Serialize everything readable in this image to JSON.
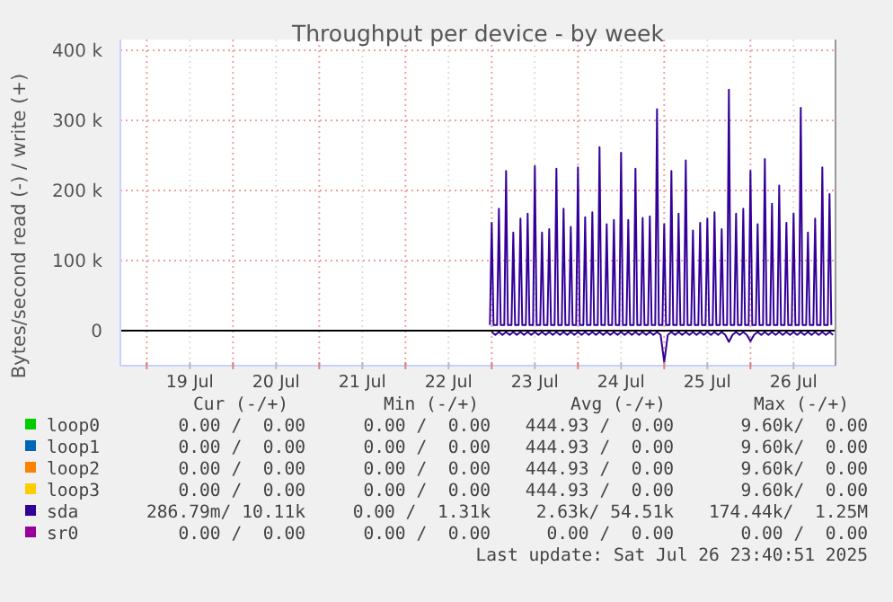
{
  "chart_data": {
    "type": "line",
    "title": "Throughput per device - by week",
    "ylabel": "Bytes/second read (-) / write (+)",
    "xlim": [
      "2025-07-18T16:40",
      "2025-07-26T23:40"
    ],
    "xticks": [
      {
        "value": "2025-07-19T00:00",
        "label": null
      },
      {
        "value": "2025-07-19T12:00",
        "label": "19 Jul"
      },
      {
        "value": "2025-07-20T00:00",
        "label": null
      },
      {
        "value": "2025-07-20T12:00",
        "label": "20 Jul"
      },
      {
        "value": "2025-07-21T00:00",
        "label": null
      },
      {
        "value": "2025-07-21T12:00",
        "label": "21 Jul"
      },
      {
        "value": "2025-07-22T00:00",
        "label": null
      },
      {
        "value": "2025-07-22T12:00",
        "label": "22 Jul"
      },
      {
        "value": "2025-07-23T00:00",
        "label": null
      },
      {
        "value": "2025-07-23T12:00",
        "label": "23 Jul"
      },
      {
        "value": "2025-07-24T00:00",
        "label": null
      },
      {
        "value": "2025-07-24T12:00",
        "label": "24 Jul"
      },
      {
        "value": "2025-07-25T00:00",
        "label": null
      },
      {
        "value": "2025-07-25T12:00",
        "label": "25 Jul"
      },
      {
        "value": "2025-07-26T00:00",
        "label": null
      },
      {
        "value": "2025-07-26T12:00",
        "label": "26 Jul"
      }
    ],
    "ylim": [
      -50000,
      400000
    ],
    "yticks": [
      0,
      {
        "value": 100000,
        "label": "100 k"
      },
      {
        "value": 200000,
        "label": "200 k"
      },
      {
        "value": 300000,
        "label": "300 k"
      },
      {
        "value": 400000,
        "label": "400 k"
      }
    ],
    "grid": true,
    "legend": "bottom",
    "marker": "none",
    "line_style": "solid",
    "series": [
      {
        "name": "loop0",
        "color": "#00cc00"
      },
      {
        "name": "loop1",
        "color": "#0066b3"
      },
      {
        "name": "loop2",
        "color": "#ff8000"
      },
      {
        "name": "loop3",
        "color": "#ffcc00"
      },
      {
        "name": "sda",
        "color": "#330099",
        "x": [
          "2025-07-22T23:30",
          "2025-07-23T00:00",
          "2025-07-23T00:30",
          "2025-07-23T01:30",
          "2025-07-23T02:00",
          "2025-07-23T02:30",
          "2025-07-23T03:30",
          "2025-07-23T04:00",
          "2025-07-23T04:30",
          "2025-07-23T05:30",
          "2025-07-23T06:00",
          "2025-07-23T06:30",
          "2025-07-23T07:30",
          "2025-07-23T08:00",
          "2025-07-23T08:30",
          "2025-07-23T09:30",
          "2025-07-23T10:00",
          "2025-07-23T10:30",
          "2025-07-23T11:30",
          "2025-07-23T12:00",
          "2025-07-23T12:30",
          "2025-07-23T13:30",
          "2025-07-23T14:00",
          "2025-07-23T14:30",
          "2025-07-23T15:30",
          "2025-07-23T16:00",
          "2025-07-23T16:30",
          "2025-07-23T17:30",
          "2025-07-23T18:00",
          "2025-07-23T18:30",
          "2025-07-23T19:30",
          "2025-07-23T20:00",
          "2025-07-23T20:30",
          "2025-07-23T21:30",
          "2025-07-23T22:00",
          "2025-07-23T22:30",
          "2025-07-23T23:30",
          "2025-07-24T00:00",
          "2025-07-24T00:30",
          "2025-07-24T01:30",
          "2025-07-24T02:00",
          "2025-07-24T02:30",
          "2025-07-24T03:30",
          "2025-07-24T04:00",
          "2025-07-24T04:30",
          "2025-07-24T05:30",
          "2025-07-24T06:00",
          "2025-07-24T06:30",
          "2025-07-24T07:30",
          "2025-07-24T08:00",
          "2025-07-24T08:30",
          "2025-07-24T09:30",
          "2025-07-24T10:00",
          "2025-07-24T10:30",
          "2025-07-24T11:30",
          "2025-07-24T12:00",
          "2025-07-24T12:30",
          "2025-07-24T13:30",
          "2025-07-24T14:00",
          "2025-07-24T14:30",
          "2025-07-24T15:30",
          "2025-07-24T16:00",
          "2025-07-24T16:30",
          "2025-07-24T17:30",
          "2025-07-24T18:00",
          "2025-07-24T18:30",
          "2025-07-24T19:30",
          "2025-07-24T20:00",
          "2025-07-24T20:30",
          "2025-07-24T21:30",
          "2025-07-24T22:00",
          "2025-07-24T22:30",
          "2025-07-24T23:30",
          "2025-07-25T00:00",
          "2025-07-25T00:30",
          "2025-07-25T01:30",
          "2025-07-25T02:00",
          "2025-07-25T02:30",
          "2025-07-25T03:30",
          "2025-07-25T04:00",
          "2025-07-25T04:30",
          "2025-07-25T05:30",
          "2025-07-25T06:00",
          "2025-07-25T06:30",
          "2025-07-25T07:30",
          "2025-07-25T08:00",
          "2025-07-25T08:30",
          "2025-07-25T09:30",
          "2025-07-25T10:00",
          "2025-07-25T10:30",
          "2025-07-25T11:30",
          "2025-07-25T12:00",
          "2025-07-25T12:30",
          "2025-07-25T13:30",
          "2025-07-25T14:00",
          "2025-07-25T14:30",
          "2025-07-25T15:30",
          "2025-07-25T16:00",
          "2025-07-25T16:30",
          "2025-07-25T17:30",
          "2025-07-25T18:00",
          "2025-07-25T18:30",
          "2025-07-25T19:30",
          "2025-07-25T20:00",
          "2025-07-25T20:30",
          "2025-07-25T21:30",
          "2025-07-25T22:00",
          "2025-07-25T22:30",
          "2025-07-25T23:30",
          "2025-07-26T00:00",
          "2025-07-26T00:30",
          "2025-07-26T01:30",
          "2025-07-26T02:00",
          "2025-07-26T02:30",
          "2025-07-26T03:30",
          "2025-07-26T04:00",
          "2025-07-26T04:30",
          "2025-07-26T05:30",
          "2025-07-26T06:00",
          "2025-07-26T06:30",
          "2025-07-26T07:30",
          "2025-07-26T08:00",
          "2025-07-26T08:30",
          "2025-07-26T09:30",
          "2025-07-26T10:00",
          "2025-07-26T10:30",
          "2025-07-26T11:30",
          "2025-07-26T12:00",
          "2025-07-26T12:30",
          "2025-07-26T13:30",
          "2025-07-26T14:00",
          "2025-07-26T14:30",
          "2025-07-26T15:30",
          "2025-07-26T16:00",
          "2025-07-26T16:30",
          "2025-07-26T17:30",
          "2025-07-26T18:00",
          "2025-07-26T18:30",
          "2025-07-26T19:30",
          "2025-07-26T20:00",
          "2025-07-26T20:30",
          "2025-07-26T21:30",
          "2025-07-26T22:00",
          "2025-07-26T22:30"
        ],
        "values": [
          8000,
          154000,
          8000,
          8000,
          174000,
          8000,
          8000,
          228000,
          8000,
          8000,
          140000,
          8000,
          8000,
          160000,
          8000,
          8000,
          167000,
          8000,
          8000,
          235000,
          8000,
          8000,
          140000,
          8000,
          8000,
          145000,
          8000,
          8000,
          231000,
          8000,
          8000,
          174000,
          8000,
          8000,
          148000,
          8000,
          8000,
          233000,
          8000,
          8000,
          162000,
          8000,
          8000,
          169000,
          8000,
          8000,
          262000,
          8000,
          8000,
          152000,
          8000,
          8000,
          158000,
          8000,
          8000,
          254000,
          8000,
          8000,
          158000,
          8000,
          8000,
          231000,
          8000,
          8000,
          161000,
          8000,
          8000,
          163000,
          8000,
          8000,
          316000,
          8000,
          8000,
          152000,
          8000,
          8000,
          228000,
          8000,
          8000,
          167000,
          8000,
          8000,
          243000,
          8000,
          8000,
          143000,
          8000,
          8000,
          154000,
          8000,
          8000,
          160000,
          8000,
          8000,
          169000,
          8000,
          8000,
          145000,
          8000,
          8000,
          344000,
          8000,
          8000,
          167000,
          8000,
          8000,
          174000,
          8000,
          8000,
          228000,
          8000,
          8000,
          152000,
          8000,
          8000,
          245000,
          8000,
          8000,
          181000,
          8000,
          8000,
          207000,
          8000,
          8000,
          154000,
          8000,
          8000,
          167000,
          8000,
          8000,
          318000,
          8000,
          8000,
          140000,
          8000,
          8000,
          160000,
          8000,
          8000,
          233000,
          8000,
          8000,
          195000,
          8000
        ]
      },
      {
        "color": "#330099",
        "x": [
          "2025-07-23T00:00",
          "2025-07-23T01:00",
          "2025-07-23T02:00",
          "2025-07-23T03:00",
          "2025-07-23T04:00",
          "2025-07-23T05:00",
          "2025-07-23T06:00",
          "2025-07-23T07:00",
          "2025-07-23T08:00",
          "2025-07-23T09:00",
          "2025-07-23T10:00",
          "2025-07-23T11:00",
          "2025-07-23T12:00",
          "2025-07-23T13:00",
          "2025-07-23T14:00",
          "2025-07-23T15:00",
          "2025-07-23T16:00",
          "2025-07-23T17:00",
          "2025-07-23T18:00",
          "2025-07-23T19:00",
          "2025-07-23T20:00",
          "2025-07-23T21:00",
          "2025-07-23T22:00",
          "2025-07-23T23:00",
          "2025-07-24T00:00",
          "2025-07-24T01:00",
          "2025-07-24T02:00",
          "2025-07-24T03:00",
          "2025-07-24T04:00",
          "2025-07-24T05:00",
          "2025-07-24T06:00",
          "2025-07-24T07:00",
          "2025-07-24T08:00",
          "2025-07-24T09:00",
          "2025-07-24T10:00",
          "2025-07-24T11:00",
          "2025-07-24T12:00",
          "2025-07-24T13:00",
          "2025-07-24T14:00",
          "2025-07-24T15:00",
          "2025-07-24T16:00",
          "2025-07-24T17:00",
          "2025-07-24T18:00",
          "2025-07-24T19:00",
          "2025-07-24T20:00",
          "2025-07-24T21:00",
          "2025-07-24T22:00",
          "2025-07-24T23:00",
          "2025-07-25T00:00",
          "2025-07-25T01:00",
          "2025-07-25T02:00",
          "2025-07-25T03:00",
          "2025-07-25T04:00",
          "2025-07-25T05:00",
          "2025-07-25T06:00",
          "2025-07-25T07:00",
          "2025-07-25T08:00",
          "2025-07-25T09:00",
          "2025-07-25T10:00",
          "2025-07-25T11:00",
          "2025-07-25T12:00",
          "2025-07-25T13:00",
          "2025-07-25T14:00",
          "2025-07-25T15:00",
          "2025-07-25T16:00",
          "2025-07-25T17:00",
          "2025-07-25T18:00",
          "2025-07-25T19:00",
          "2025-07-25T20:00",
          "2025-07-25T21:00",
          "2025-07-25T22:00",
          "2025-07-25T23:00",
          "2025-07-26T00:00",
          "2025-07-26T01:00",
          "2025-07-26T02:00",
          "2025-07-26T03:00",
          "2025-07-26T04:00",
          "2025-07-26T05:00",
          "2025-07-26T06:00",
          "2025-07-26T07:00",
          "2025-07-26T08:00",
          "2025-07-26T09:00",
          "2025-07-26T10:00",
          "2025-07-26T11:00",
          "2025-07-26T12:00",
          "2025-07-26T13:00",
          "2025-07-26T14:00",
          "2025-07-26T15:00",
          "2025-07-26T16:00",
          "2025-07-26T17:00",
          "2025-07-26T18:00",
          "2025-07-26T19:00",
          "2025-07-26T20:00",
          "2025-07-26T21:00",
          "2025-07-26T22:00",
          "2025-07-26T23:00"
        ],
        "values": [
          -2000,
          -6000,
          -2000,
          -6000,
          -2000,
          -6000,
          -2000,
          -6000,
          -2000,
          -6000,
          -2000,
          -6000,
          -2000,
          -6000,
          -2000,
          -6000,
          -2000,
          -6000,
          -2000,
          -6000,
          -2000,
          -6000,
          -2000,
          -6000,
          -2000,
          -6000,
          -2000,
          -6000,
          -2000,
          -6000,
          -2000,
          -6000,
          -2000,
          -6000,
          -2000,
          -6000,
          -2000,
          -6000,
          -2000,
          -6000,
          -2000,
          -6000,
          -2000,
          -6000,
          -2000,
          -6000,
          -2000,
          -6000,
          -45000,
          -6000,
          -2000,
          -6000,
          -2000,
          -6000,
          -2000,
          -6000,
          -2000,
          -6000,
          -2000,
          -6000,
          -2000,
          -6000,
          -2000,
          -6000,
          -2000,
          -6000,
          -16000,
          -6000,
          -2000,
          -6000,
          -2000,
          -6000,
          -15000,
          -6000,
          -2000,
          -6000,
          -2000,
          -6000,
          -2000,
          -6000,
          -2000,
          -6000,
          -2000,
          -6000,
          -2000,
          -6000,
          -2000,
          -6000,
          -2000,
          -6000,
          -2000,
          -6000,
          -2000,
          -6000,
          -2000,
          -6000
        ]
      },
      {
        "name": "sr0",
        "color": "#990099"
      }
    ],
    "annotations": [
      "Cur (-/+)",
      "Min (-/+)",
      "Avg (-/+)",
      "Max (-/+)",
      "0.00 /  0.00",
      "0.00 /  0.00",
      "444.93 /  0.00",
      "9.60k/  0.00",
      "0.00 /  0.00",
      "0.00 /  0.00",
      "444.93 /  0.00",
      "9.60k/  0.00",
      "0.00 /  0.00",
      "0.00 /  0.00",
      "444.93 /  0.00",
      "9.60k/  0.00",
      "0.00 /  0.00",
      "0.00 /  0.00",
      "444.93 /  0.00",
      "9.60k/  0.00",
      "286.79m/ 10.11k",
      "0.00 /  1.31k",
      "2.63k/ 54.51k",
      "174.44k/  1.25M",
      "0.00 /  0.00",
      "0.00 /  0.00",
      "0.00 /  0.00",
      "0.00 /  0.00",
      "Last update: Sat Jul 26 23:40:51 2025"
    ]
  }
}
